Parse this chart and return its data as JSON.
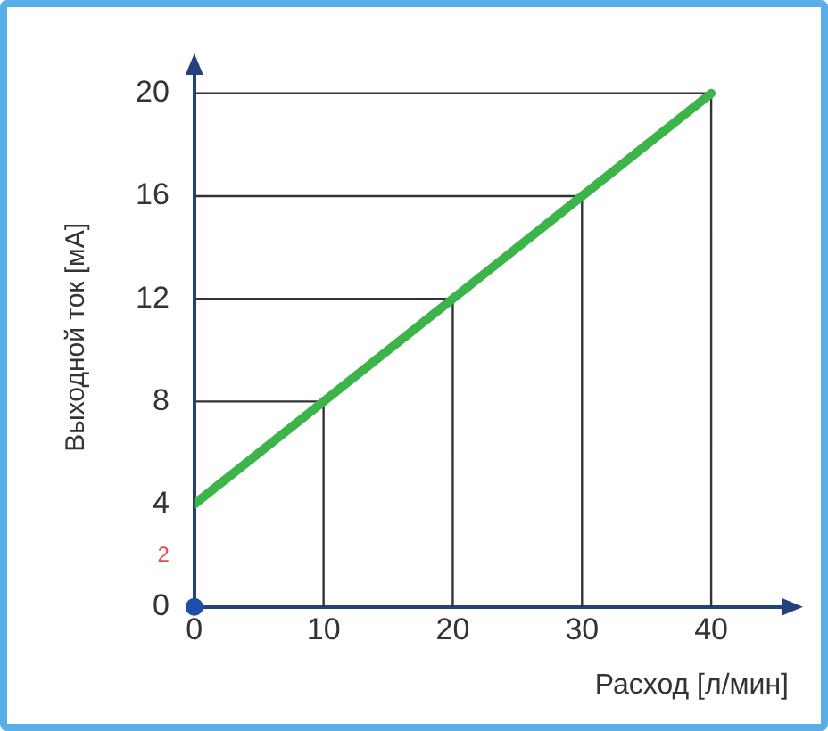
{
  "chart_data": {
    "type": "line",
    "xlabel": "Расход [л/мин]",
    "ylabel": "Выходной ток [мА]",
    "x": [
      0,
      10,
      20,
      30,
      40
    ],
    "series": [
      {
        "color": "#3cb44a",
        "values": [
          4,
          8,
          12,
          16,
          20
        ]
      },
      {
        "type": "line",
        "color": "#333333",
        "x": [
          0,
          10,
          10
        ],
        "values": [
          8,
          8,
          0
        ]
      },
      {
        "type": "line",
        "color": "#333333",
        "x": [
          0,
          20,
          20
        ],
        "values": [
          12,
          12,
          0
        ]
      },
      {
        "type": "line",
        "color": "#333333",
        "x": [
          0,
          30,
          30
        ],
        "values": [
          16,
          16,
          0
        ]
      },
      {
        "type": "line",
        "color": "#333333",
        "x": [
          0,
          40,
          40
        ],
        "values": [
          20,
          20,
          0
        ]
      }
    ],
    "xlim": [
      0,
      46
    ],
    "xticks": [
      0,
      10,
      20,
      30,
      40
    ],
    "ylim": [
      0,
      21
    ],
    "yticks": [
      0,
      {
        "value": 2,
        "label": "2"
      },
      4,
      8,
      12,
      16,
      20
    ],
    "grid": false,
    "legend": false,
    "marker": "none",
    "line_style": "solid"
  }
}
